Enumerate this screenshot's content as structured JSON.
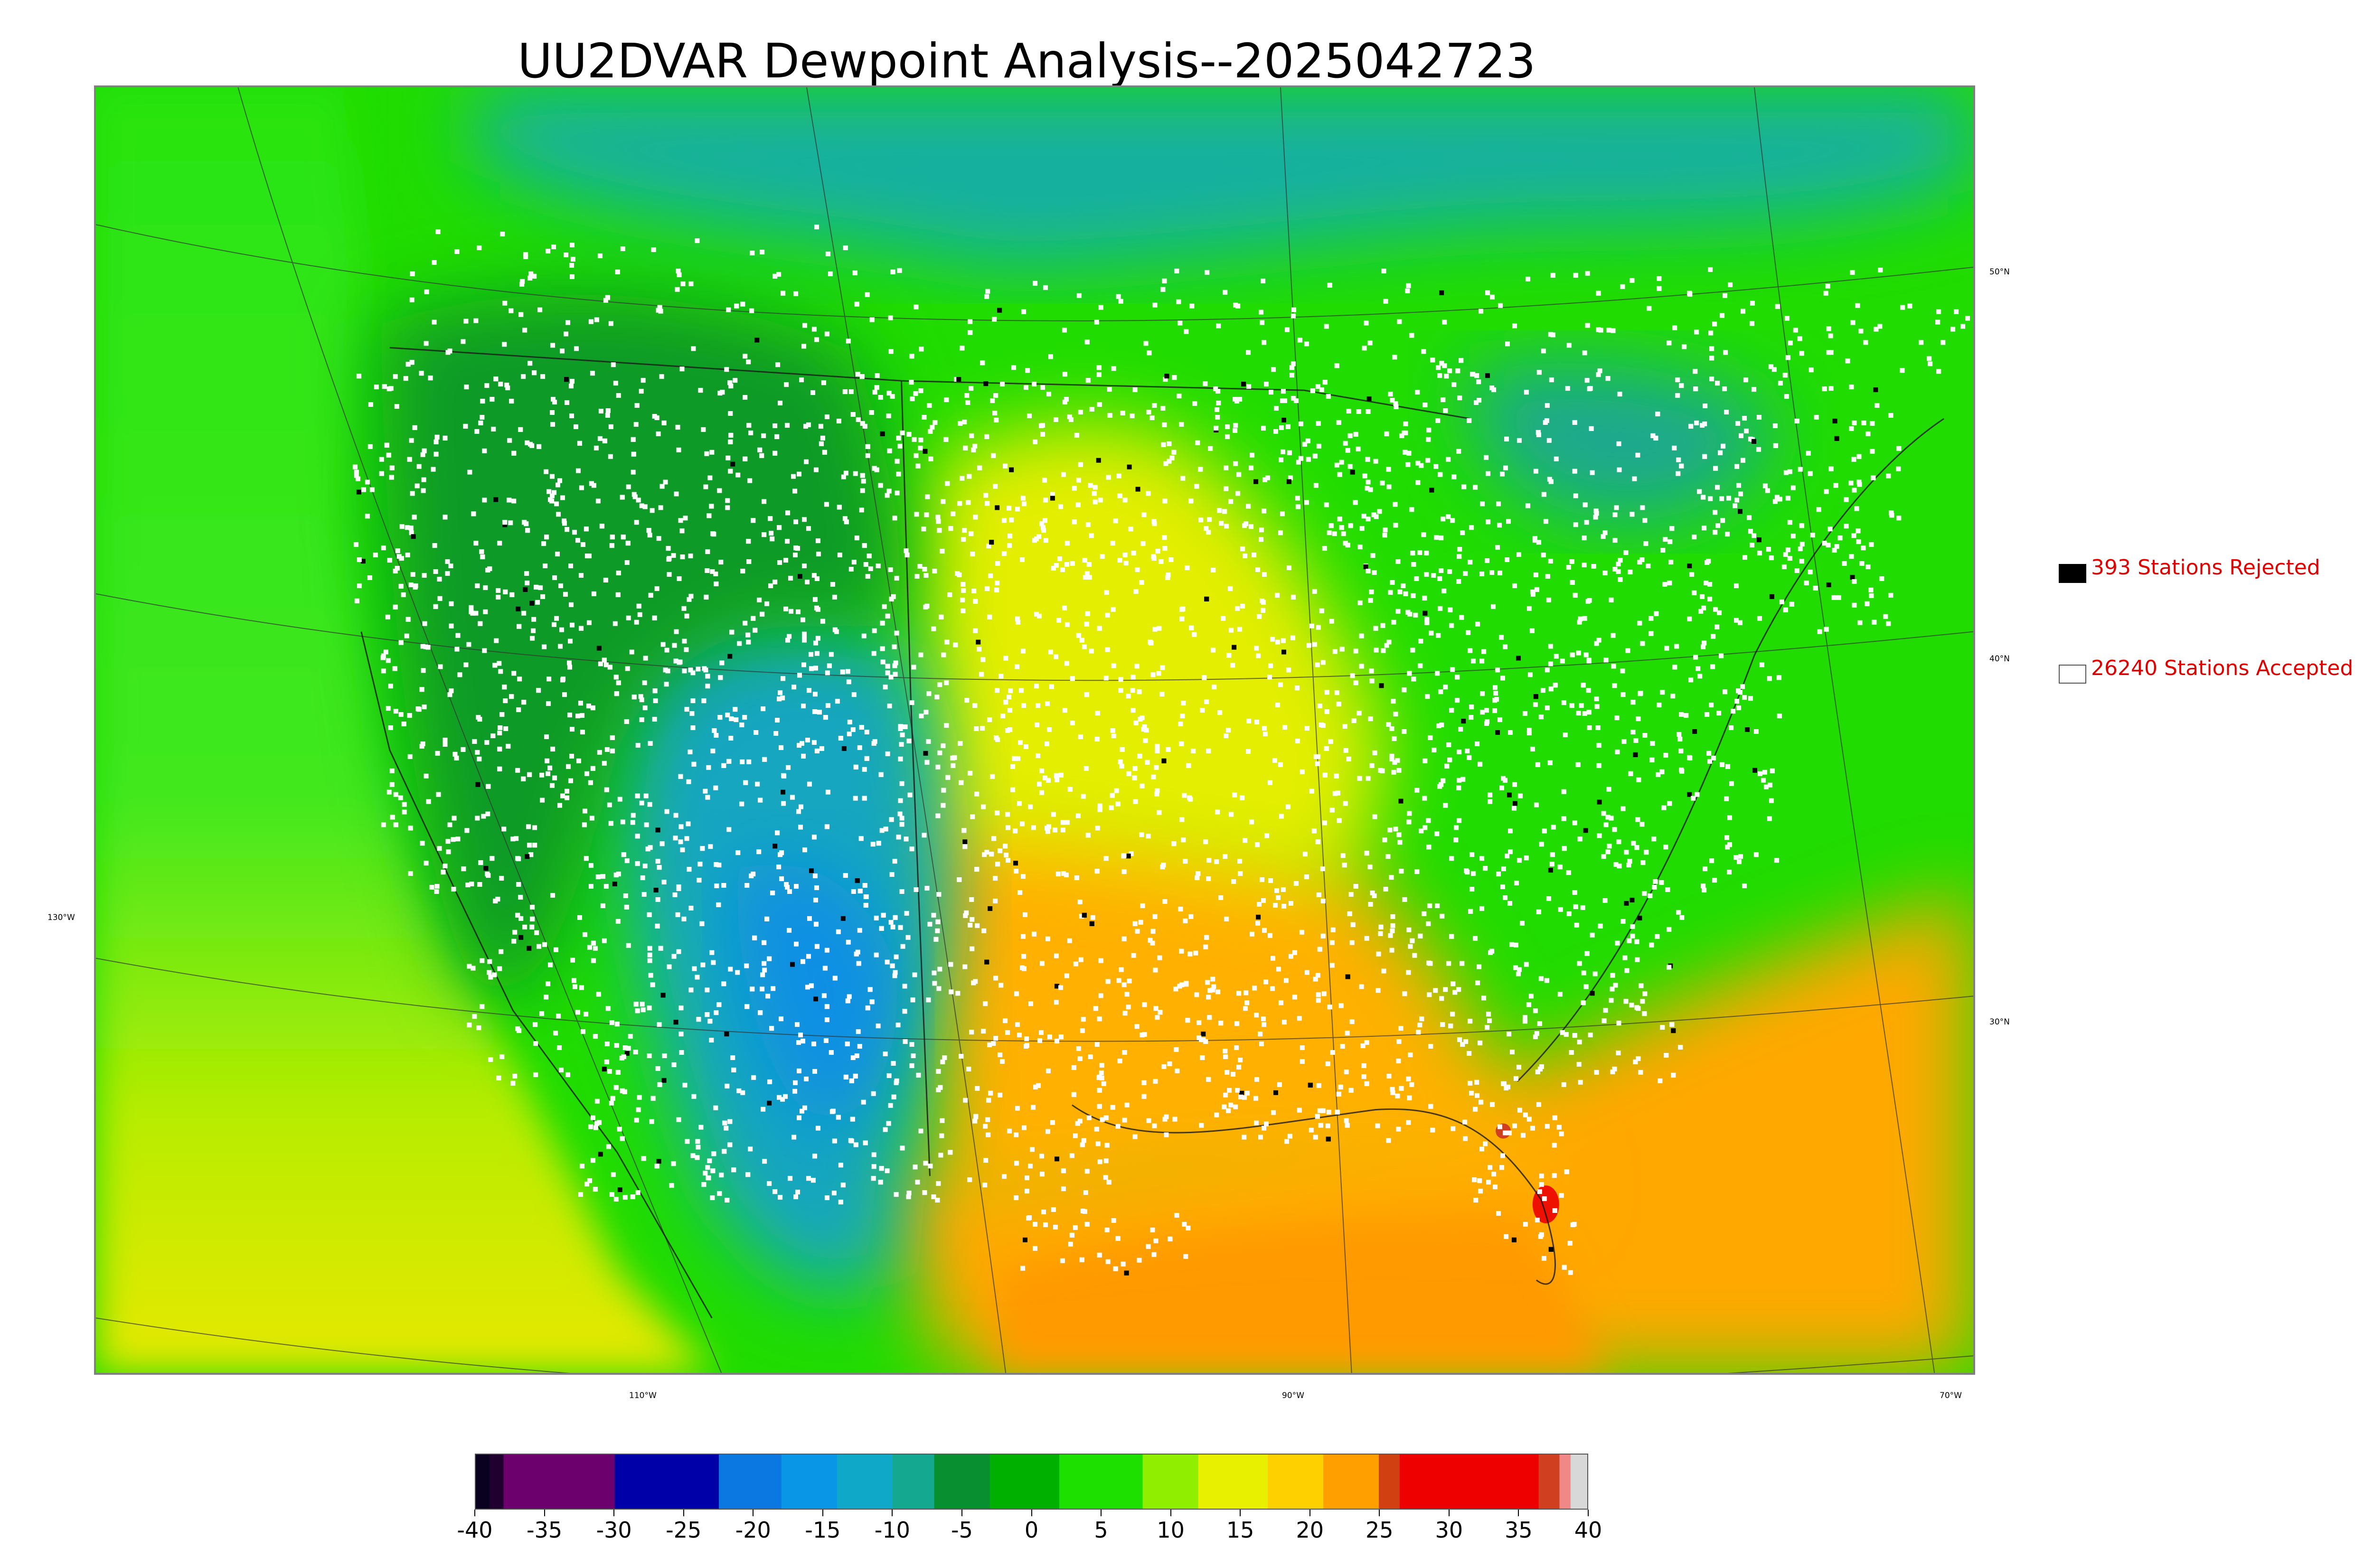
{
  "title": "UU2DVAR Dewpoint Analysis--2025042723",
  "legend": {
    "rejected": {
      "label": "393 Stations Rejected",
      "swatch": "#000000"
    },
    "accepted": {
      "label": "26240 Stations Accepted",
      "swatch": "#ffffff"
    }
  },
  "latitude_labels": [
    "50°N",
    "40°N",
    "30°N"
  ],
  "longitude_labels": [
    "130°W",
    "110°W",
    "90°W",
    "70°W"
  ],
  "colorbar": {
    "ticks": [
      "-40",
      "-35",
      "-30",
      "-25",
      "-20",
      "-15",
      "-10",
      "-5",
      "0",
      "5",
      "10",
      "15",
      "20",
      "25",
      "30",
      "35",
      "40"
    ],
    "range": [
      -40,
      40
    ],
    "colors": [
      {
        "from": -40,
        "to": -39,
        "color": "#0a0020"
      },
      {
        "from": -39,
        "to": -38,
        "color": "#20002e"
      },
      {
        "from": -38,
        "to": -30,
        "color": "#6c006c"
      },
      {
        "from": -30,
        "to": -22.5,
        "color": "#0000a8"
      },
      {
        "from": -22.5,
        "to": -18,
        "color": "#0a78e0"
      },
      {
        "from": -18,
        "to": -14,
        "color": "#0a96e6"
      },
      {
        "from": -14,
        "to": -10,
        "color": "#10a8c8"
      },
      {
        "from": -10,
        "to": -7,
        "color": "#15a890"
      },
      {
        "from": -7,
        "to": -3,
        "color": "#089030"
      },
      {
        "from": -3,
        "to": 2,
        "color": "#00b000"
      },
      {
        "from": 2,
        "to": 8,
        "color": "#1ee000"
      },
      {
        "from": 8,
        "to": 12,
        "color": "#90ee00"
      },
      {
        "from": 12,
        "to": 17,
        "color": "#e8f000"
      },
      {
        "from": 17,
        "to": 21,
        "color": "#ffd000"
      },
      {
        "from": 21,
        "to": 25,
        "color": "#ffa000"
      },
      {
        "from": 25,
        "to": 26.5,
        "color": "#d04010"
      },
      {
        "from": 26.5,
        "to": 36.5,
        "color": "#ee0000"
      },
      {
        "from": 36.5,
        "to": 38,
        "color": "#d04020"
      },
      {
        "from": 38,
        "to": 38.8,
        "color": "#f08888"
      },
      {
        "from": 38.8,
        "to": 40,
        "color": "#d8d8d8"
      }
    ]
  },
  "colors": {
    "ocean_green": "#22e000",
    "west_coast_ocean": "#30e818",
    "gulf_orange": "#ffa400",
    "plains_yellow": "#ffd400",
    "rockies_blue": "#14a6c0",
    "dark_green": "#0a9828",
    "canada_teal": "#14a8a0",
    "station_accepted": "#ffffff",
    "station_rejected": "#000000",
    "legend_text": "#e00000"
  }
}
